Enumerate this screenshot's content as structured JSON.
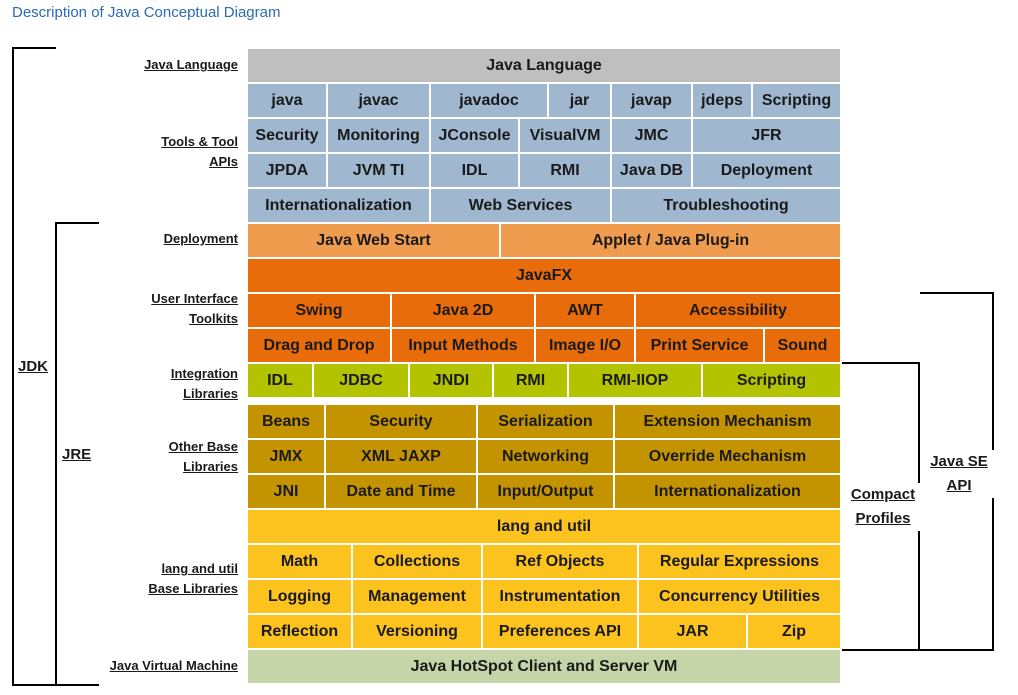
{
  "title": "Description of Java Conceptual Diagram",
  "brackets": {
    "jdk": "JDK",
    "jre": "JRE",
    "compact_profiles": "Compact Profiles",
    "java_se_api": "Java SE API"
  },
  "row_labels": {
    "java_language": "Java Language",
    "tools": "Tools & Tool APIs",
    "deployment": "Deployment",
    "ui_toolkits": "User Interface Toolkits",
    "integration": "Integration Libraries",
    "other_base": "Other Base Libraries",
    "lang_util": "lang and util Base Libraries",
    "jvm": "Java Virtual Machine"
  },
  "colors": {
    "language": "#bfbfbf",
    "tools": "#9fb7cf",
    "deployment": "#ef9c4e",
    "ui": "#e96c0a",
    "integration": "#b3c300",
    "other_base": "#c49400",
    "lang_util": "#fcc21e",
    "jvm": "#c5d5a8"
  },
  "rows": [
    {
      "group": "language",
      "cells": [
        "Java Language"
      ]
    },
    {
      "group": "tools",
      "cells": [
        "java",
        "javac",
        "javadoc",
        "jar",
        "javap",
        "jdeps",
        "Scripting"
      ]
    },
    {
      "group": "tools",
      "cells": [
        "Security",
        "Monitoring",
        "JConsole",
        "VisualVM",
        "JMC",
        "JFR"
      ]
    },
    {
      "group": "tools",
      "cells": [
        "JPDA",
        "JVM TI",
        "IDL",
        "RMI",
        "Java DB",
        "Deployment"
      ]
    },
    {
      "group": "tools",
      "cells": [
        "Internationalization",
        "Web Services",
        "Troubleshooting"
      ]
    },
    {
      "group": "deployment",
      "cells": [
        "Java Web Start",
        "Applet / Java Plug-in"
      ]
    },
    {
      "group": "ui",
      "cells": [
        "JavaFX"
      ]
    },
    {
      "group": "ui",
      "cells": [
        "Swing",
        "Java 2D",
        "AWT",
        "Accessibility"
      ]
    },
    {
      "group": "ui",
      "cells": [
        "Drag and Drop",
        "Input Methods",
        "Image I/O",
        "Print Service",
        "Sound"
      ]
    },
    {
      "group": "integration",
      "cells": [
        "IDL",
        "JDBC",
        "JNDI",
        "RMI",
        "RMI-IIOP",
        "Scripting"
      ]
    },
    {
      "group": "other_base",
      "cells": [
        "Beans",
        "Security",
        "Serialization",
        "Extension Mechanism"
      ]
    },
    {
      "group": "other_base",
      "cells": [
        "JMX",
        "XML JAXP",
        "Networking",
        "Override Mechanism"
      ]
    },
    {
      "group": "other_base",
      "cells": [
        "JNI",
        "Date and Time",
        "Input/Output",
        "Internationalization"
      ]
    },
    {
      "group": "lang_util",
      "cells": [
        "lang and util"
      ]
    },
    {
      "group": "lang_util",
      "cells": [
        "Math",
        "Collections",
        "Ref Objects",
        "Regular Expressions"
      ]
    },
    {
      "group": "lang_util",
      "cells": [
        "Logging",
        "Management",
        "Instrumentation",
        "Concurrency Utilities"
      ]
    },
    {
      "group": "lang_util",
      "cells": [
        "Reflection",
        "Versioning",
        "Preferences API",
        "JAR",
        "Zip"
      ]
    },
    {
      "group": "jvm",
      "cells": [
        "Java HotSpot Client and Server VM"
      ]
    }
  ]
}
